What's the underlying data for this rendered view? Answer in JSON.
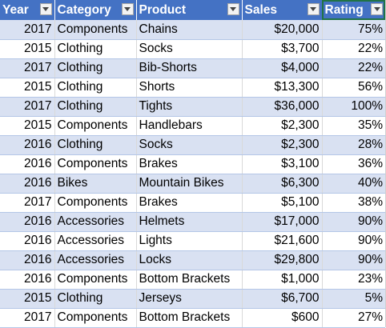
{
  "headers": [
    {
      "label": "Year",
      "key": "year"
    },
    {
      "label": "Category",
      "key": "category"
    },
    {
      "label": "Product",
      "key": "product"
    },
    {
      "label": "Sales",
      "key": "sales"
    },
    {
      "label": "Rating",
      "key": "rating"
    }
  ],
  "rows": [
    {
      "year": "2017",
      "category": "Components",
      "product": "Chains",
      "sales": "$20,000",
      "rating": "75%"
    },
    {
      "year": "2015",
      "category": "Clothing",
      "product": "Socks",
      "sales": "$3,700",
      "rating": "22%"
    },
    {
      "year": "2017",
      "category": "Clothing",
      "product": "Bib-Shorts",
      "sales": "$4,000",
      "rating": "22%"
    },
    {
      "year": "2015",
      "category": "Clothing",
      "product": "Shorts",
      "sales": "$13,300",
      "rating": "56%"
    },
    {
      "year": "2017",
      "category": "Clothing",
      "product": "Tights",
      "sales": "$36,000",
      "rating": "100%"
    },
    {
      "year": "2015",
      "category": "Components",
      "product": "Handlebars",
      "sales": "$2,300",
      "rating": "35%"
    },
    {
      "year": "2016",
      "category": "Clothing",
      "product": "Socks",
      "sales": "$2,300",
      "rating": "28%"
    },
    {
      "year": "2016",
      "category": "Components",
      "product": "Brakes",
      "sales": "$3,100",
      "rating": "36%"
    },
    {
      "year": "2016",
      "category": "Bikes",
      "product": "Mountain Bikes",
      "sales": "$6,300",
      "rating": "40%"
    },
    {
      "year": "2017",
      "category": "Components",
      "product": "Brakes",
      "sales": "$5,100",
      "rating": "38%"
    },
    {
      "year": "2016",
      "category": "Accessories",
      "product": "Helmets",
      "sales": "$17,000",
      "rating": "90%"
    },
    {
      "year": "2016",
      "category": "Accessories",
      "product": "Lights",
      "sales": "$21,600",
      "rating": "90%"
    },
    {
      "year": "2016",
      "category": "Accessories",
      "product": "Locks",
      "sales": "$29,800",
      "rating": "90%"
    },
    {
      "year": "2016",
      "category": "Components",
      "product": "Bottom Brackets",
      "sales": "$1,000",
      "rating": "23%"
    },
    {
      "year": "2015",
      "category": "Clothing",
      "product": "Jerseys",
      "sales": "$6,700",
      "rating": "5%"
    },
    {
      "year": "2017",
      "category": "Components",
      "product": "Bottom Brackets",
      "sales": "$600",
      "rating": "27%"
    }
  ],
  "colors": {
    "header_bg": "#4472c4",
    "band": "#d9e1f2",
    "selection": "#217346"
  },
  "icons": {
    "filter": "filter-dropdown-icon"
  }
}
